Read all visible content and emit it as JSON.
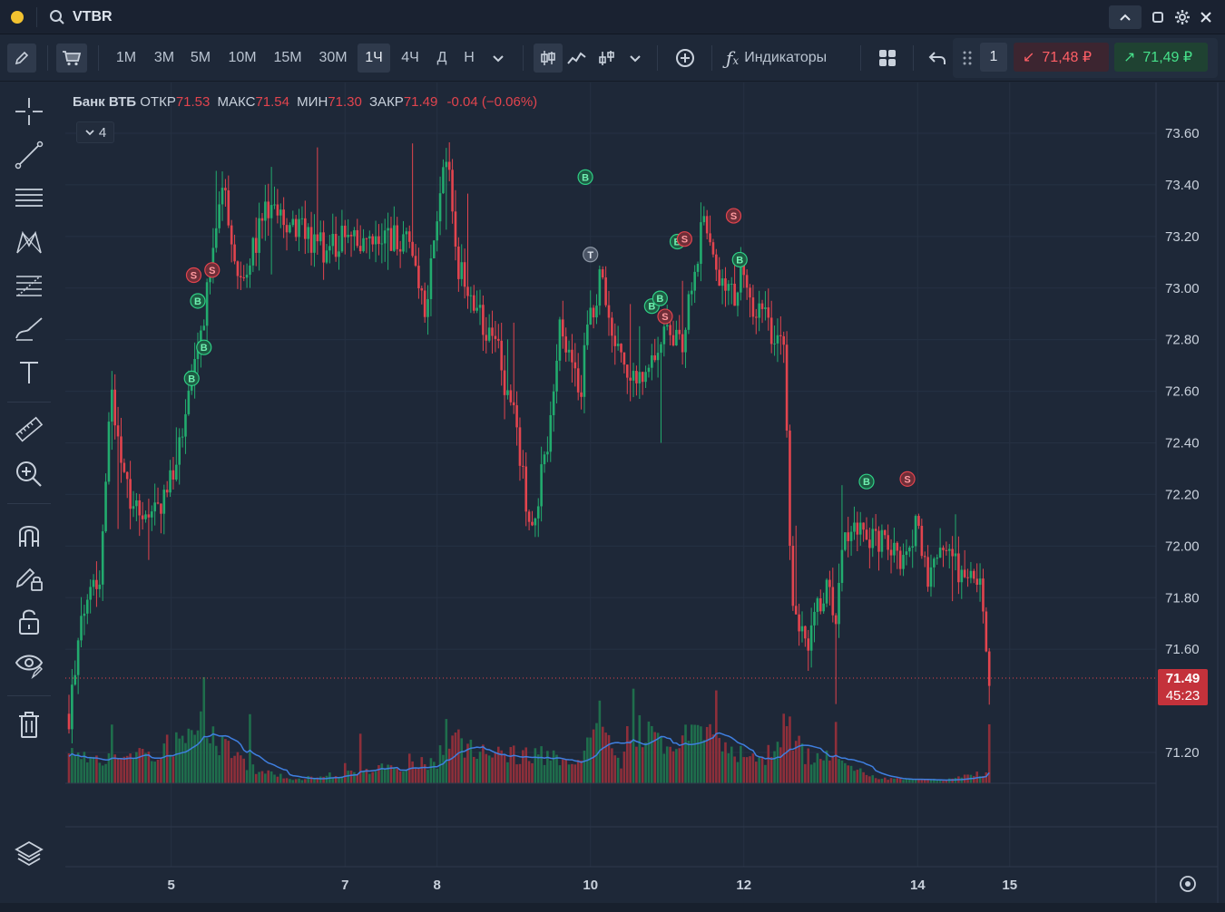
{
  "title": {
    "ticker": "VTBR"
  },
  "toolbar": {
    "timeframes": [
      "1М",
      "3М",
      "5М",
      "10М",
      "15М",
      "30М",
      "1Ч",
      "4Ч",
      "Д",
      "Н"
    ],
    "active_timeframe": "1Ч",
    "indicators_label": "Индикаторы",
    "quantity": "1",
    "sell_price": "71,48 ₽",
    "buy_price": "71,49 ₽"
  },
  "legend": {
    "name": "Банк ВТБ",
    "open_label": "ОТКР",
    "open": "71.53",
    "high_label": "МАКС",
    "high": "71.54",
    "low_label": "МИН",
    "low": "71.30",
    "close_label": "ЗАКР",
    "close": "71.49",
    "change": "-0.04 (−0.06%)",
    "indicators_count": "4"
  },
  "price_tag": {
    "price": "71.49",
    "timer": "45:23"
  },
  "colors": {
    "up": "#22ab6e",
    "down": "#e2444e",
    "ma": "#3f7fe0",
    "background": "#1e2838"
  },
  "chart_data": {
    "type": "candlestick",
    "ylim": [
      71.05,
      73.75
    ],
    "yticks": [
      "73.60",
      "73.40",
      "73.20",
      "73.00",
      "72.80",
      "72.60",
      "72.40",
      "72.20",
      "72.00",
      "71.80",
      "71.60",
      "71.20"
    ],
    "xticks": [
      {
        "label": "5",
        "x": 0.1
      },
      {
        "label": "7",
        "x": 0.27
      },
      {
        "label": "8",
        "x": 0.36
      },
      {
        "label": "10",
        "x": 0.51
      },
      {
        "label": "12",
        "x": 0.66
      },
      {
        "label": "14",
        "x": 0.83
      },
      {
        "label": "15",
        "x": 0.92
      }
    ],
    "path": [
      [
        0,
        71.35
      ],
      [
        0.02,
        71.9
      ],
      [
        0.03,
        71.85
      ],
      [
        0.04,
        72.6
      ],
      [
        0.06,
        72.2
      ],
      [
        0.08,
        72.1
      ],
      [
        0.1,
        72.25
      ],
      [
        0.12,
        72.6
      ],
      [
        0.14,
        73.1
      ],
      [
        0.15,
        73.4
      ],
      [
        0.17,
        73.0
      ],
      [
        0.19,
        73.3
      ],
      [
        0.22,
        73.25
      ],
      [
        0.25,
        73.15
      ],
      [
        0.27,
        73.2
      ],
      [
        0.29,
        73.15
      ],
      [
        0.31,
        73.2
      ],
      [
        0.33,
        73.2
      ],
      [
        0.35,
        72.9
      ],
      [
        0.36,
        73.3
      ],
      [
        0.37,
        73.5
      ],
      [
        0.38,
        73.1
      ],
      [
        0.4,
        72.9
      ],
      [
        0.42,
        72.75
      ],
      [
        0.44,
        72.4
      ],
      [
        0.45,
        72.05
      ],
      [
        0.47,
        72.4
      ],
      [
        0.48,
        72.9
      ],
      [
        0.5,
        72.6
      ],
      [
        0.51,
        72.9
      ],
      [
        0.52,
        73.05
      ],
      [
        0.53,
        72.8
      ],
      [
        0.54,
        72.7
      ],
      [
        0.56,
        72.65
      ],
      [
        0.58,
        72.8
      ],
      [
        0.6,
        72.8
      ],
      [
        0.61,
        73.05
      ],
      [
        0.62,
        73.25
      ],
      [
        0.63,
        73.15
      ],
      [
        0.64,
        73.0
      ],
      [
        0.65,
        72.95
      ],
      [
        0.66,
        73.1
      ],
      [
        0.67,
        72.9
      ],
      [
        0.68,
        72.9
      ],
      [
        0.69,
        72.8
      ],
      [
        0.7,
        72.75
      ],
      [
        0.705,
        72.0
      ],
      [
        0.71,
        71.7
      ],
      [
        0.72,
        71.6
      ],
      [
        0.74,
        71.85
      ],
      [
        0.75,
        71.75
      ],
      [
        0.76,
        72.05
      ],
      [
        0.78,
        72.05
      ],
      [
        0.8,
        72.0
      ],
      [
        0.81,
        71.95
      ],
      [
        0.82,
        72.0
      ],
      [
        0.83,
        72.1
      ],
      [
        0.84,
        71.9
      ],
      [
        0.85,
        72.0
      ],
      [
        0.86,
        71.95
      ],
      [
        0.88,
        71.85
      ],
      [
        0.89,
        71.85
      ],
      [
        0.9,
        71.5
      ]
    ],
    "volume": [
      [
        0,
        0.4
      ],
      [
        0.05,
        0.3
      ],
      [
        0.12,
        0.6
      ],
      [
        0.13,
        0.9
      ],
      [
        0.15,
        0.5
      ],
      [
        0.18,
        0.2
      ],
      [
        0.22,
        0.05
      ],
      [
        0.36,
        0.3
      ],
      [
        0.37,
        0.7
      ],
      [
        0.4,
        0.4
      ],
      [
        0.45,
        0.4
      ],
      [
        0.5,
        0.3
      ],
      [
        0.52,
        0.9
      ],
      [
        0.54,
        0.3
      ],
      [
        0.55,
        0.8
      ],
      [
        0.58,
        0.5
      ],
      [
        0.62,
        0.7
      ],
      [
        0.64,
        0.5
      ],
      [
        0.66,
        0.4
      ],
      [
        0.68,
        0.3
      ],
      [
        0.7,
        0.8
      ],
      [
        0.72,
        0.4
      ],
      [
        0.76,
        0.3
      ],
      [
        0.78,
        0.1
      ],
      [
        0.82,
        0.05
      ],
      [
        0.86,
        0.05
      ],
      [
        0.88,
        0.1
      ],
      [
        0.9,
        0.15
      ]
    ],
    "signals": [
      {
        "type": "S",
        "x": 0.122,
        "y": 73.05
      },
      {
        "type": "S",
        "x": 0.14,
        "y": 73.07
      },
      {
        "type": "B",
        "x": 0.126,
        "y": 72.95
      },
      {
        "type": "B",
        "x": 0.132,
        "y": 72.77
      },
      {
        "type": "B",
        "x": 0.12,
        "y": 72.65
      },
      {
        "type": "B",
        "x": 0.505,
        "y": 73.43
      },
      {
        "type": "T",
        "x": 0.51,
        "y": 73.13
      },
      {
        "type": "B",
        "x": 0.595,
        "y": 73.18
      },
      {
        "type": "S",
        "x": 0.602,
        "y": 73.19
      },
      {
        "type": "B",
        "x": 0.57,
        "y": 72.93
      },
      {
        "type": "B",
        "x": 0.578,
        "y": 72.96
      },
      {
        "type": "S",
        "x": 0.583,
        "y": 72.89
      },
      {
        "type": "S",
        "x": 0.65,
        "y": 73.28
      },
      {
        "type": "B",
        "x": 0.656,
        "y": 73.11
      },
      {
        "type": "B",
        "x": 0.78,
        "y": 72.25
      },
      {
        "type": "S",
        "x": 0.82,
        "y": 72.26
      }
    ]
  }
}
